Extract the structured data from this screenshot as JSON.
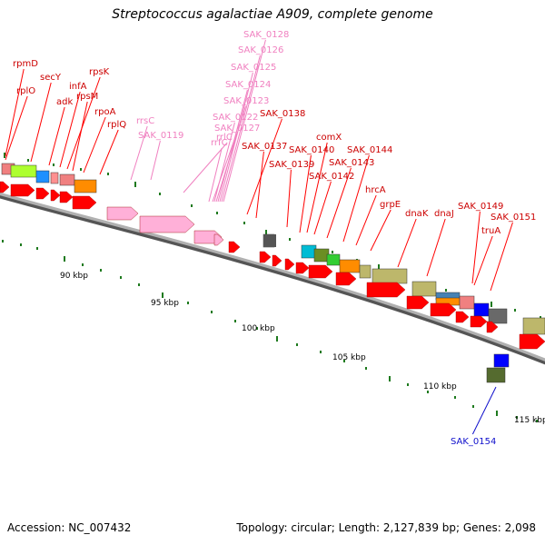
{
  "title": "Streptococcus agalactiae A909, complete genome",
  "footer": {
    "accession": "Accession: NC_007432",
    "summary": "Topology: circular; Length: 2,127,839 bp; Genes: 2,098"
  },
  "colors": {
    "cds": "#ff0000",
    "rna": "#ffb0d8",
    "rna_label": "#f080c0",
    "cds_label": "#cc0000",
    "highlight_label": "#1010cc",
    "backbone": "#8c8c8c",
    "tick": "#1e7a1e"
  },
  "scale": {
    "tick_labels": [
      "90 kbp",
      "95 kbp",
      "100 kbp",
      "105 kbp",
      "110 kbp",
      "115 kbp"
    ]
  },
  "genes": [
    {
      "name": "rpmD",
      "kind": "cds"
    },
    {
      "name": "rplO",
      "kind": "cds"
    },
    {
      "name": "secY",
      "kind": "cds"
    },
    {
      "name": "adk",
      "kind": "cds"
    },
    {
      "name": "infA",
      "kind": "cds"
    },
    {
      "name": "rpsK",
      "kind": "cds"
    },
    {
      "name": "rpsM",
      "kind": "cds"
    },
    {
      "name": "rpoA",
      "kind": "cds"
    },
    {
      "name": "rplQ",
      "kind": "cds"
    },
    {
      "name": "rrsC",
      "kind": "rna"
    },
    {
      "name": "SAK_0119",
      "kind": "rna"
    },
    {
      "name": "rrlC",
      "kind": "rna"
    },
    {
      "name": "rrfC",
      "kind": "rna"
    },
    {
      "name": "SAK_0127",
      "kind": "rna"
    },
    {
      "name": "SAK_0122",
      "kind": "rna"
    },
    {
      "name": "SAK_0123",
      "kind": "rna"
    },
    {
      "name": "SAK_0124",
      "kind": "rna"
    },
    {
      "name": "SAK_0125",
      "kind": "rna"
    },
    {
      "name": "SAK_0126",
      "kind": "rna"
    },
    {
      "name": "SAK_0128",
      "kind": "rna"
    },
    {
      "name": "SAK_0138",
      "kind": "cds"
    },
    {
      "name": "SAK_0137",
      "kind": "cds"
    },
    {
      "name": "SAK_0139",
      "kind": "cds"
    },
    {
      "name": "SAK_0140",
      "kind": "cds"
    },
    {
      "name": "comX",
      "kind": "cds"
    },
    {
      "name": "SAK_0142",
      "kind": "cds"
    },
    {
      "name": "SAK_0143",
      "kind": "cds"
    },
    {
      "name": "SAK_0144",
      "kind": "cds"
    },
    {
      "name": "hrcA",
      "kind": "cds"
    },
    {
      "name": "grpE",
      "kind": "cds"
    },
    {
      "name": "dnaK",
      "kind": "cds"
    },
    {
      "name": "dnaJ",
      "kind": "cds"
    },
    {
      "name": "SAK_0149",
      "kind": "cds"
    },
    {
      "name": "SAK_0151",
      "kind": "cds"
    },
    {
      "name": "truA",
      "kind": "cds"
    },
    {
      "name": "SAK_0154",
      "kind": "highlight"
    }
  ]
}
